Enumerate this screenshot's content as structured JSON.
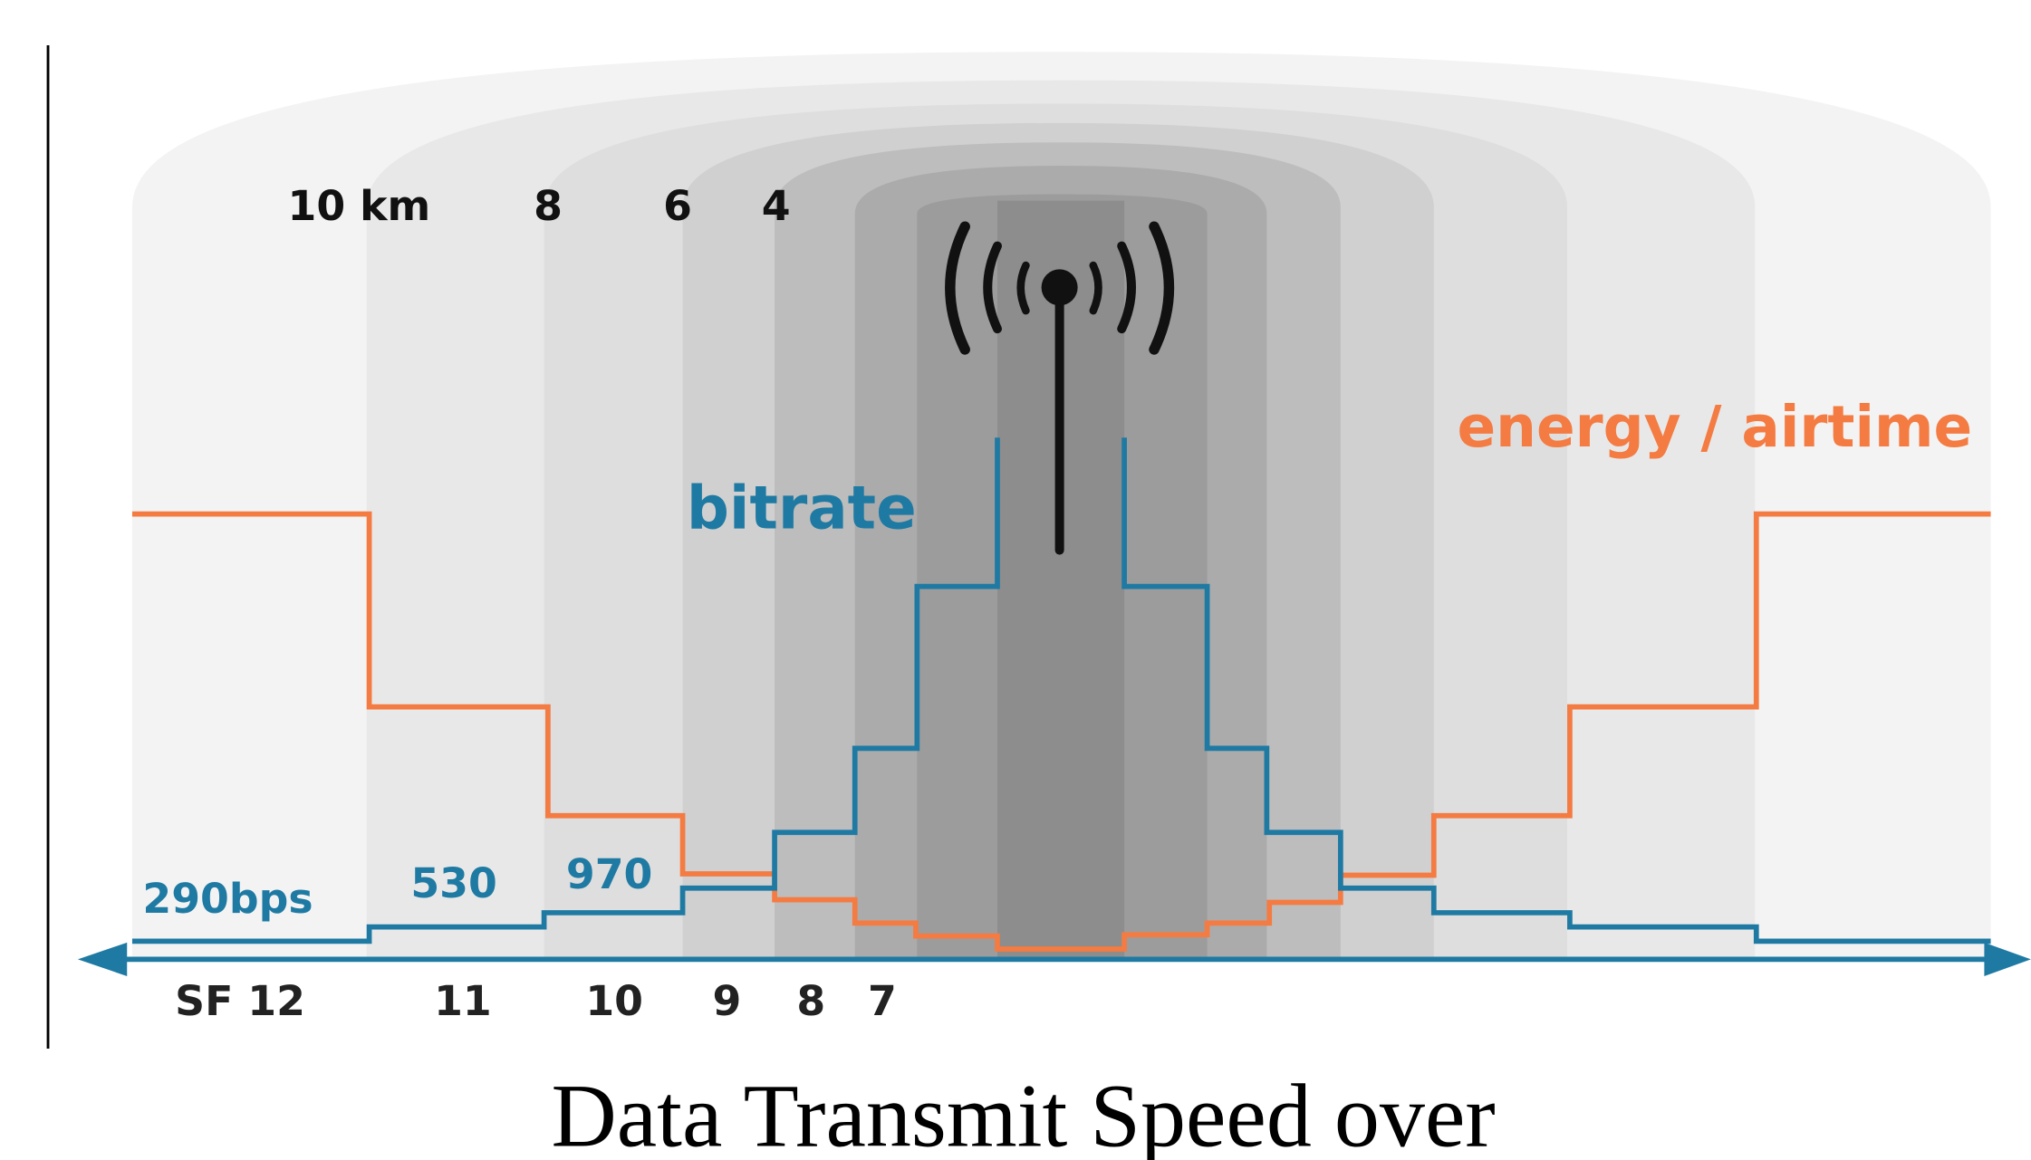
{
  "distances": [
    "10 km",
    "8",
    "6",
    "4"
  ],
  "curve_labels": {
    "bitrate": "bitrate",
    "energy": "energy / airtime"
  },
  "bitrates": [
    "290bps",
    "530",
    "970"
  ],
  "spreading_factors": [
    "SF 12",
    "11",
    "10",
    "9",
    "8",
    "7"
  ],
  "caption": "Data Transmit Speed over"
}
